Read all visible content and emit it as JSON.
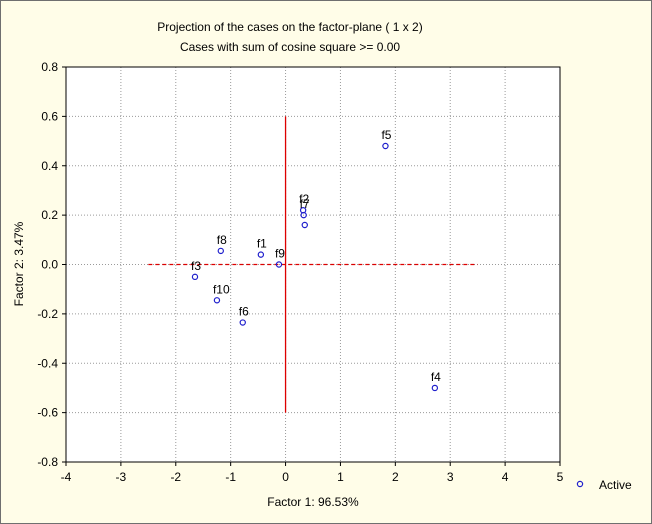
{
  "chart_data": {
    "type": "scatter",
    "title": "Projection of the cases on the factor-plane (  1 x   2)",
    "subtitle": "Cases with sum of cosine square >=  0.00",
    "xlabel": "Factor 1: 96.53%",
    "ylabel": "Factor 2:  3.47%",
    "xlim": [
      -4,
      5
    ],
    "ylim": [
      -0.8,
      0.8
    ],
    "xticks": [
      -4,
      -3,
      -2,
      -1,
      0,
      1,
      2,
      3,
      4,
      5
    ],
    "yticks": [
      -0.8,
      -0.6,
      -0.4,
      -0.2,
      0.0,
      0.2,
      0.4,
      0.6,
      0.8
    ],
    "xtick_labels": [
      "-4",
      "-3",
      "-2",
      "-1",
      "0",
      "1",
      "2",
      "3",
      "4",
      "5"
    ],
    "ytick_labels": [
      "-0.8",
      "-0.6",
      "-0.4",
      "-0.2",
      "0.0",
      "0.2",
      "0.4",
      "0.6",
      "0.8"
    ],
    "grid": true,
    "legend": {
      "entries": [
        "Active"
      ],
      "placement": "bottom-right"
    },
    "colors": {
      "points": "#1f1fcc",
      "reference_lines": "#dd0000",
      "grid": "#9a9a9a",
      "background": "#fffde8"
    },
    "reference_lines": {
      "horizontal": {
        "y": 0,
        "x_range": [
          -2.5,
          3.5
        ],
        "style": "dashed"
      },
      "vertical": {
        "x": 0,
        "y_range": [
          -0.6,
          0.6
        ],
        "style": "solid"
      }
    },
    "series": [
      {
        "name": "Active",
        "points": [
          {
            "label": "f1",
            "x": -0.45,
            "y": 0.04
          },
          {
            "label": "f2",
            "x": 0.32,
            "y": 0.22
          },
          {
            "label": "f3",
            "x": -1.65,
            "y": -0.05
          },
          {
            "label": "f4",
            "x": 2.72,
            "y": -0.5
          },
          {
            "label": "f5",
            "x": 1.82,
            "y": 0.48
          },
          {
            "label": "f6",
            "x": -0.78,
            "y": -0.235
          },
          {
            "label": "f7",
            "x": 0.33,
            "y": 0.2
          },
          {
            "label": "f8",
            "x": -1.18,
            "y": 0.055
          },
          {
            "label": "f9",
            "x": -0.12,
            "y": 0.0
          },
          {
            "label": "f10",
            "x": -1.25,
            "y": -0.145
          },
          {
            "label": "",
            "x": 0.35,
            "y": 0.16
          }
        ]
      }
    ]
  }
}
